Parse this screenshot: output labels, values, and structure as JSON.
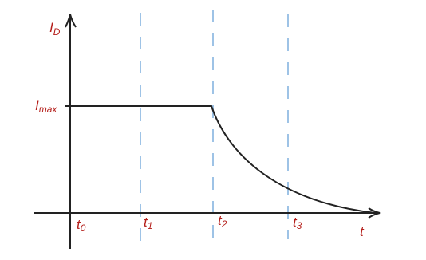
{
  "axes": {
    "y_label": {
      "main": "I",
      "sub": "D"
    },
    "x_label": "t"
  },
  "level_label": {
    "main": "I",
    "sub": "max"
  },
  "time_marks": [
    {
      "main": "t",
      "sub": "0"
    },
    {
      "main": "t",
      "sub": "1"
    },
    {
      "main": "t",
      "sub": "2"
    },
    {
      "main": "t",
      "sub": "3"
    }
  ]
}
